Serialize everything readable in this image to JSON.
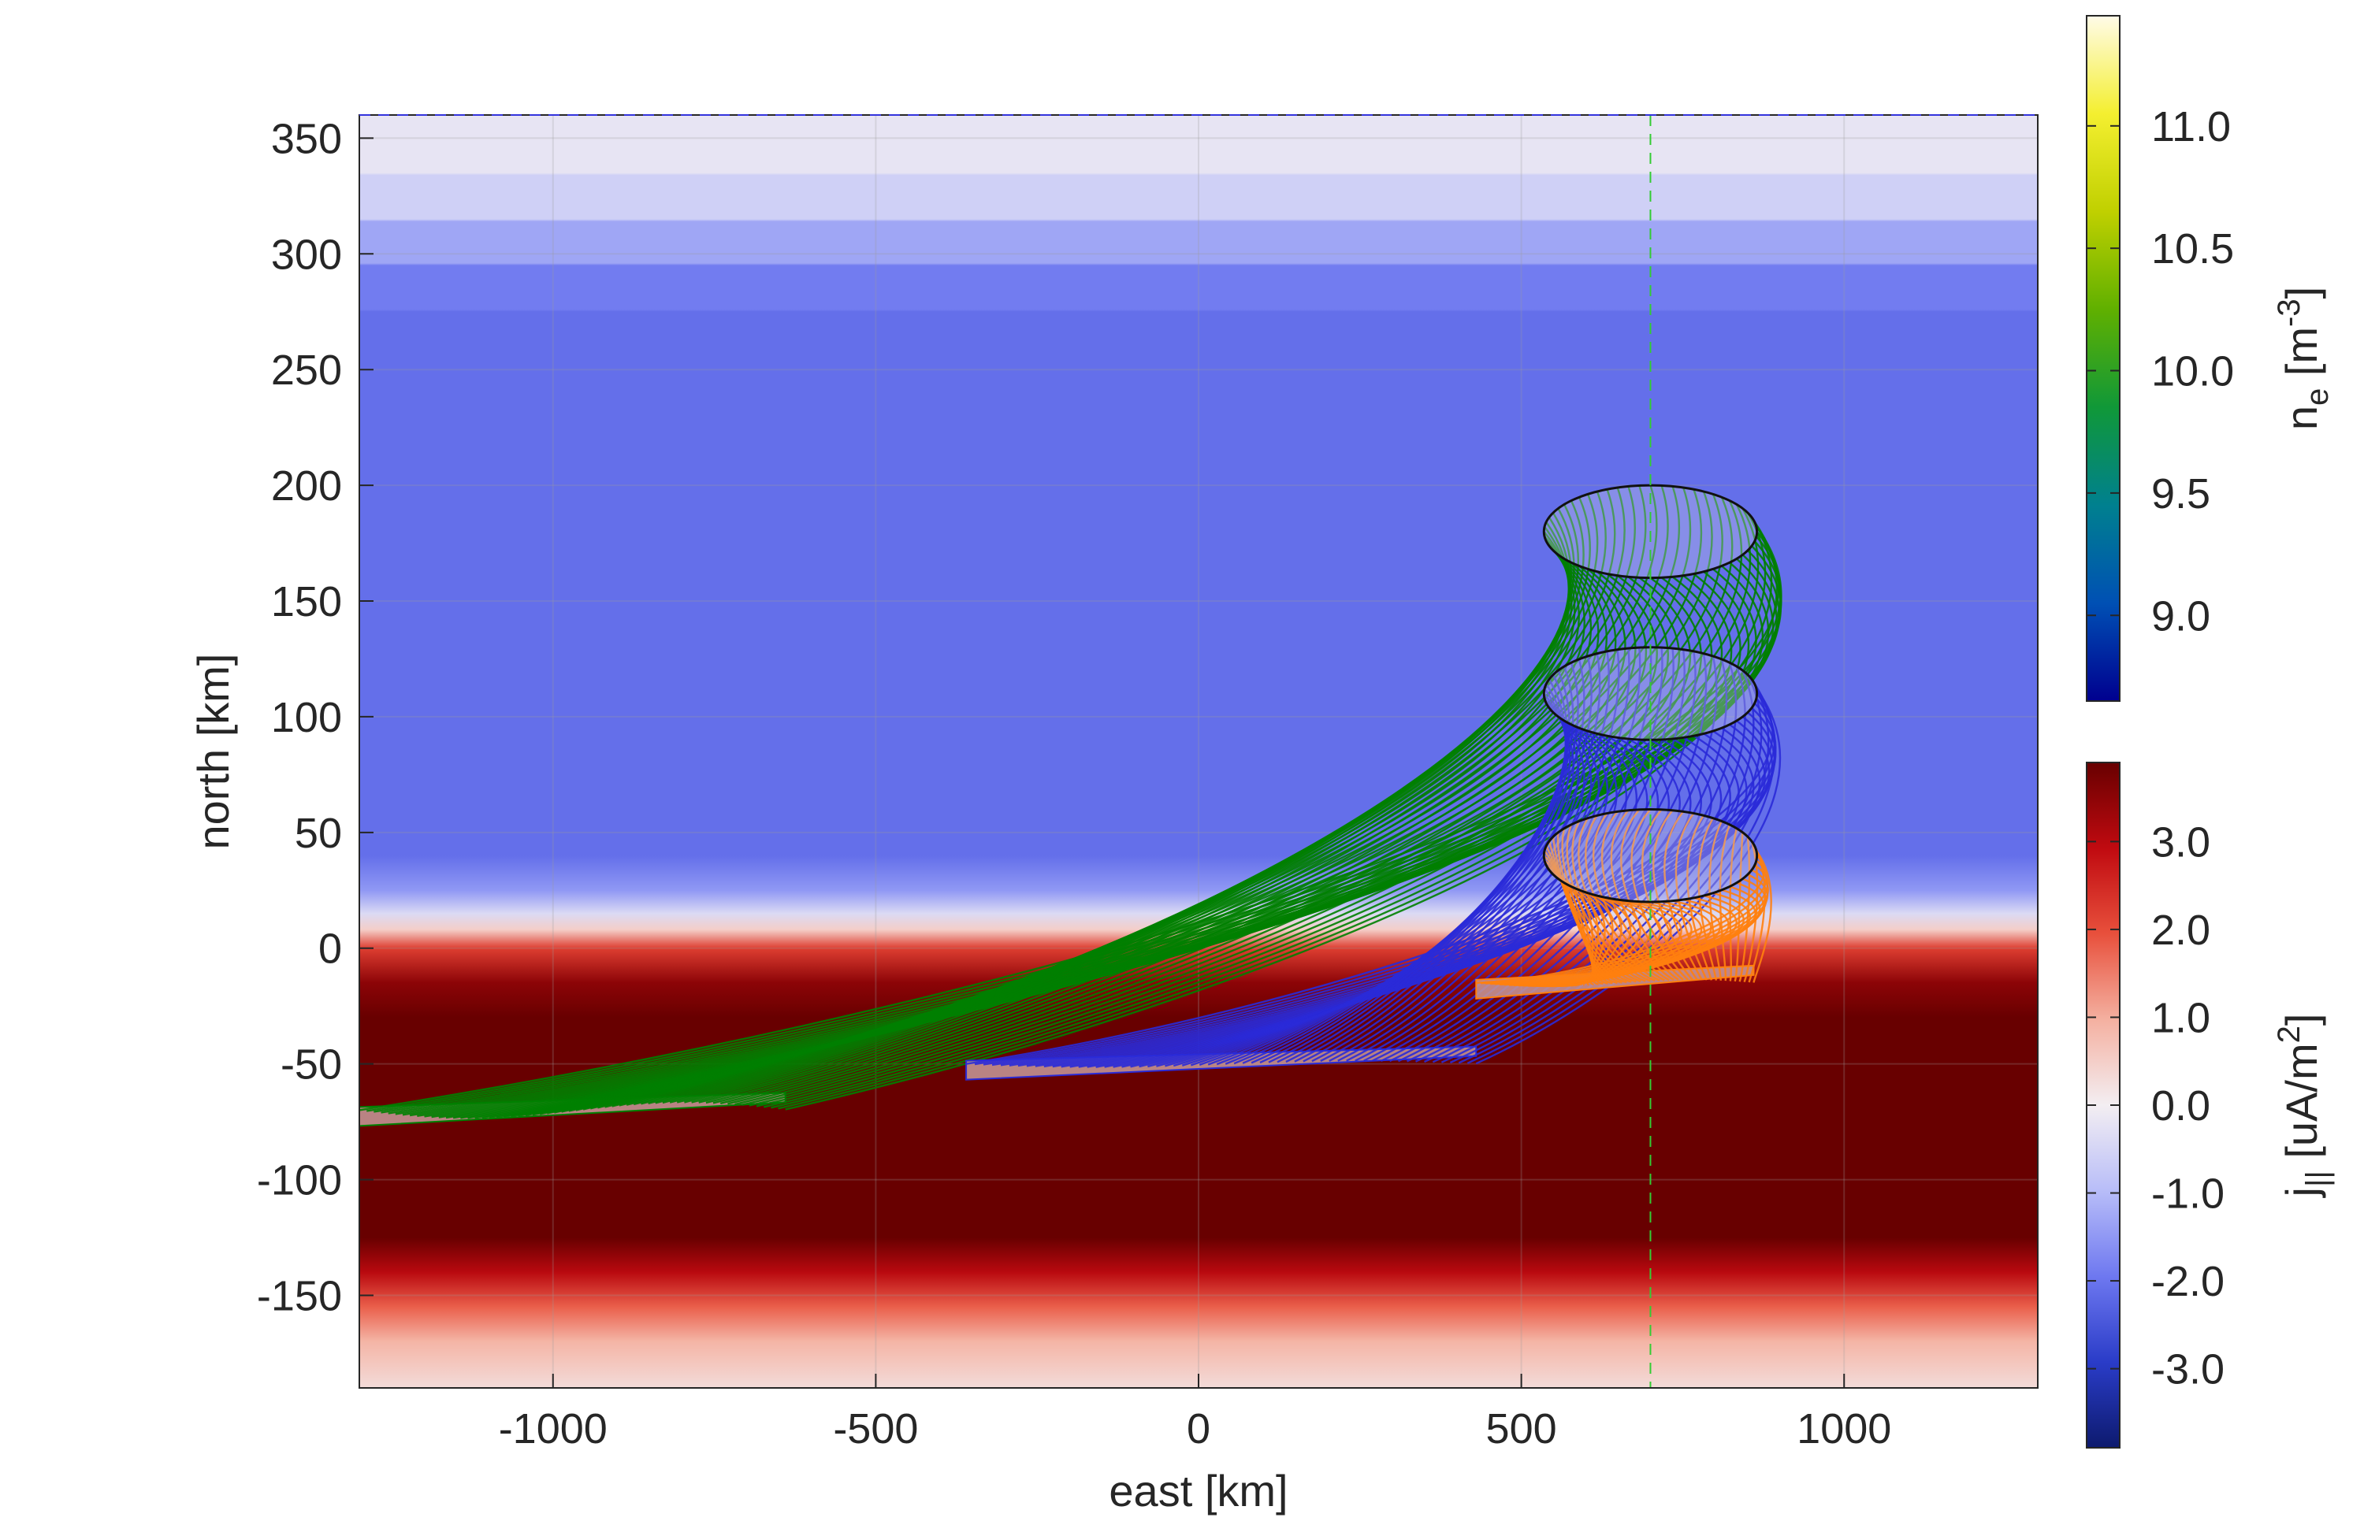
{
  "chart_data": {
    "type": "heatmap",
    "title": "",
    "xlabel": "east [km]",
    "ylabel": "north [km]",
    "xlim": [
      -1300,
      1300
    ],
    "ylim": [
      -190,
      360
    ],
    "xticks": [
      -1000,
      -500,
      0,
      500,
      1000
    ],
    "xtick_labels": [
      "-1000",
      "-500",
      "0",
      "500",
      "1000"
    ],
    "yticks": [
      -150,
      -100,
      -50,
      0,
      50,
      100,
      150,
      200,
      250,
      300,
      350
    ],
    "ytick_labels": [
      "-150",
      "-100",
      "-50",
      "0",
      "50",
      "100",
      "150",
      "200",
      "250",
      "300",
      "350"
    ],
    "grid": true,
    "vertical_reference_line_east_km": 700,
    "current_colormap_profile": [
      {
        "north": 360,
        "j": -0.2
      },
      {
        "north": 335,
        "j": -0.2
      },
      {
        "north": 334,
        "j": -0.6
      },
      {
        "north": 315,
        "j": -0.6
      },
      {
        "north": 314,
        "j": -1.3
      },
      {
        "north": 296,
        "j": -1.3
      },
      {
        "north": 295,
        "j": -1.9
      },
      {
        "north": 276,
        "j": -1.9
      },
      {
        "north": 275,
        "j": -2.1
      },
      {
        "north": 40,
        "j": -2.1
      },
      {
        "north": 25,
        "j": -1.5
      },
      {
        "north": 15,
        "j": -0.4
      },
      {
        "north": 8,
        "j": 0.5
      },
      {
        "north": 0,
        "j": 2.2
      },
      {
        "north": -15,
        "j": 3.5
      },
      {
        "north": -30,
        "j": 3.9
      },
      {
        "north": -125,
        "j": 3.9
      },
      {
        "north": -140,
        "j": 3.0
      },
      {
        "north": -155,
        "j": 1.8
      },
      {
        "north": -170,
        "j": 0.9
      },
      {
        "north": -190,
        "j": 0.3
      }
    ],
    "flux_tubes": [
      {
        "color": "#008000",
        "top_center_east": 700,
        "top_center_north": 180,
        "top_radius_east": 165,
        "top_radius_north": 20,
        "foot_east_start": -1300,
        "foot_east_end": -640,
        "foot_north": -70
      },
      {
        "color": "#2a2ad8",
        "top_center_east": 700,
        "top_center_north": 110,
        "top_radius_east": 165,
        "top_radius_north": 20,
        "foot_east_start": -360,
        "foot_east_end": 430,
        "foot_north": -50
      },
      {
        "color": "#ff7f0e",
        "top_center_east": 700,
        "top_center_north": 40,
        "top_radius_east": 165,
        "top_radius_north": 20,
        "foot_east_start": 430,
        "foot_east_end": 860,
        "foot_north": -15
      }
    ],
    "colorbars": [
      {
        "name": "density",
        "label_main": "n",
        "label_sub": "e",
        "label_rest": " [m",
        "label_sup": "-3",
        "label_end": "]",
        "range": [
          8.65,
          11.45
        ],
        "ticks": [
          9.0,
          9.5,
          10.0,
          10.5,
          11.0
        ],
        "tick_labels": [
          "9.0",
          "9.5",
          "10.0",
          "10.5",
          "11.0"
        ],
        "colors": [
          "#00008f",
          "#0050b4",
          "#00808f",
          "#109838",
          "#60b000",
          "#c0d000",
          "#f4ef30",
          "#fffbe8"
        ]
      },
      {
        "name": "current",
        "label_main": "j",
        "label_sub": "||",
        "label_rest": " [uA/m",
        "label_sup": "2",
        "label_end": "]",
        "range": [
          -3.9,
          3.9
        ],
        "ticks": [
          -3.0,
          -2.0,
          -1.0,
          0.0,
          1.0,
          2.0,
          3.0
        ],
        "tick_labels": [
          "-3.0",
          "-2.0",
          "-1.0",
          "0.0",
          "1.0",
          "2.0",
          "3.0"
        ],
        "colors": [
          "#0d1a6e",
          "#2a3cc8",
          "#6e78f0",
          "#b8bdf8",
          "#f3eef2",
          "#f4b0a0",
          "#e8503c",
          "#c00a10",
          "#680000"
        ]
      }
    ]
  }
}
